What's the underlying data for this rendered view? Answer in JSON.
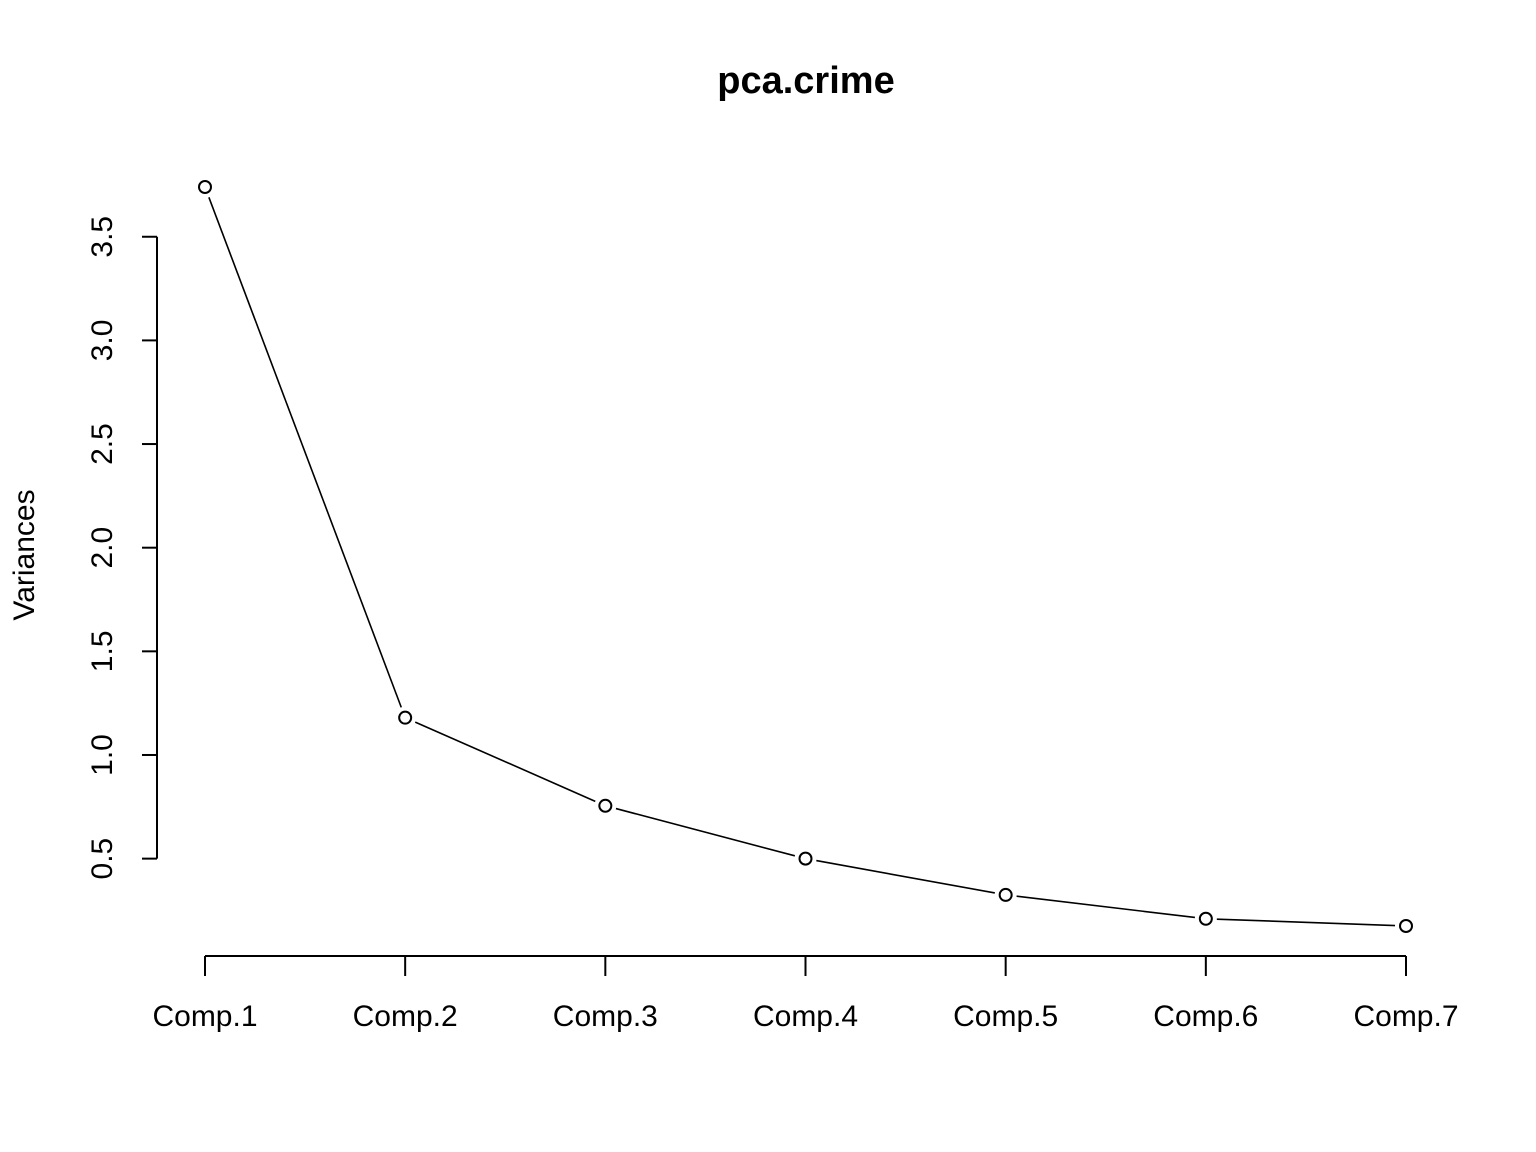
{
  "chart_data": {
    "type": "line",
    "title": "pca.crime",
    "xlabel": "",
    "ylabel": "Variances",
    "categories": [
      "Comp.1",
      "Comp.2",
      "Comp.3",
      "Comp.4",
      "Comp.5",
      "Comp.6",
      "Comp.7"
    ],
    "values": [
      3.74,
      1.18,
      0.755,
      0.5,
      0.325,
      0.21,
      0.175
    ],
    "yticks": [
      0.5,
      1.0,
      1.5,
      2.0,
      2.5,
      3.0,
      3.5
    ],
    "ytick_labels": [
      "0.5",
      "1.0",
      "1.5",
      "2.0",
      "2.5",
      "3.0",
      "3.5"
    ],
    "ylim": [
      0.175,
      3.74
    ],
    "grid": false,
    "legend": "none",
    "marker": "open-circle",
    "colors": {
      "line": "#000000",
      "marker_fill": "#ffffff",
      "marker_stroke": "#000000"
    }
  }
}
